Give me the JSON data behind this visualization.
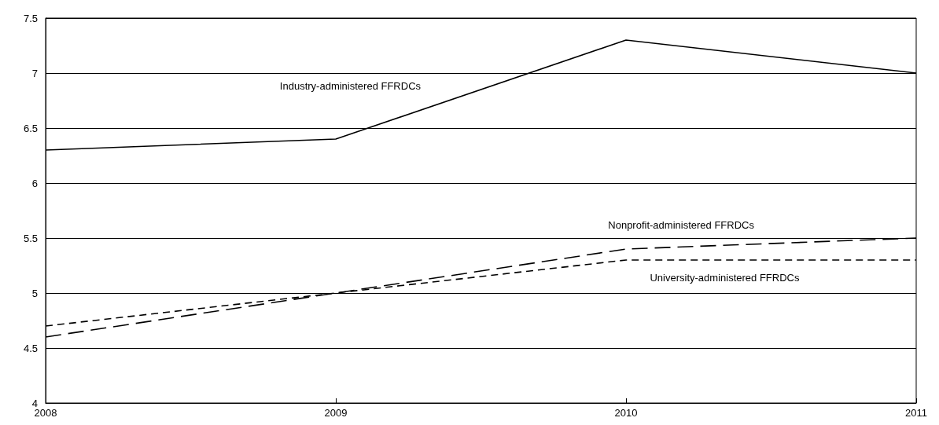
{
  "chart_data": {
    "type": "line",
    "x": [
      2008,
      2009,
      2010,
      2011
    ],
    "xlim": [
      2008,
      2011
    ],
    "xticks": [
      2008,
      2009,
      2010,
      2011
    ],
    "ylim": [
      4,
      7.5
    ],
    "yticks": [
      4,
      4.5,
      5,
      5.5,
      6,
      6.5,
      7,
      7.5
    ],
    "grid": "y",
    "legend": false,
    "marker": "none",
    "series": [
      {
        "name": "Industry-administered FFRDCs",
        "color": "#000000",
        "line_style": "solid",
        "values": [
          6.3,
          6.4,
          7.3,
          7.0
        ]
      },
      {
        "name": "Nonprofit-administered FFRDCs",
        "color": "#000000",
        "line_style": "dashed",
        "values": [
          4.6,
          5.0,
          5.4,
          5.5
        ]
      },
      {
        "name": "University-administered FFRDCs",
        "color": "#000000",
        "line_style": "dashed",
        "values": [
          4.7,
          5.0,
          5.3,
          5.3
        ]
      }
    ]
  }
}
